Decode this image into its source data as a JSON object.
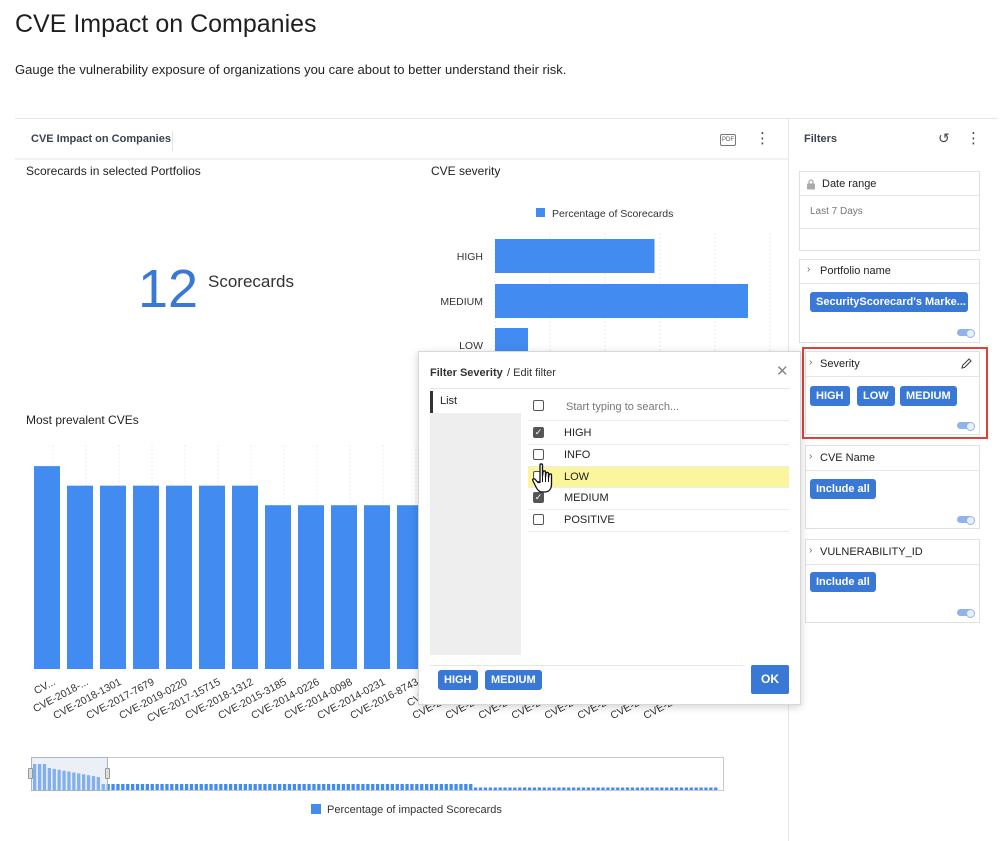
{
  "page": {
    "title": "CVE Impact on Companies",
    "subtitle": "Gauge the vulnerability exposure of organizations you care about to better understand their risk."
  },
  "dashboard": {
    "tab_label": "CVE Impact on Companies",
    "pdf_label": "PDF",
    "more_icon": "more-vertical-icon"
  },
  "kpi": {
    "title": "Scorecards in selected Portfolios",
    "value": "12",
    "label": "Scorecards"
  },
  "severity_chart_title": "CVE severity",
  "bar_chart_title": "Most prevalent CVEs",
  "bottom_legend": "Percentage of impacted Scorecards",
  "chart_data": [
    {
      "type": "bar",
      "orientation": "horizontal",
      "title": "CVE severity",
      "categories": [
        "HIGH",
        "MEDIUM",
        "LOW"
      ],
      "series": [
        {
          "name": "Percentage of Scorecards",
          "values": [
            58,
            92,
            12
          ],
          "color": "#418bf1"
        }
      ],
      "legend": "top",
      "grid": true
    },
    {
      "type": "bar",
      "title": "Most prevalent CVEs",
      "categories": [
        "CV...",
        "CVE-2018-...",
        "CVE-2018-1301",
        "CVE-2017-7679",
        "CVE-2019-0220",
        "CVE-2017-15715",
        "CVE-2018-1312",
        "CVE-2015-3185",
        "CVE-2014-0226",
        "CVE-2014-0098",
        "CVE-2014-0231",
        "CVE-2016-8743",
        "CVE-2016"
      ],
      "series": [
        {
          "name": "Percentage of impacted Scorecards",
          "values": [
            8.3,
            7.5,
            7.5,
            7.5,
            7.5,
            7.5,
            7.5,
            6.7,
            6.7,
            6.7,
            6.7,
            6.7,
            6.7
          ],
          "color": "#418bf1"
        }
      ],
      "legend": "bottom",
      "grid": true
    }
  ],
  "overflow_tick_labels": [
    "CVE-20...",
    "CVE-20...",
    "CVE-20...",
    "CVE-20...",
    "CVE-20...",
    "CVE-20...",
    "CVE-20...",
    "CVE-20..."
  ],
  "filters": {
    "title": "Filters",
    "reset_icon": "reset-icon",
    "more_icon": "more-vertical-icon",
    "date_range": {
      "label": "Date range",
      "value": "Last 7 Days",
      "icon": "lock-icon"
    },
    "portfolio": {
      "label": "Portfolio name",
      "chip": "SecurityScorecard's Marke..."
    },
    "severity": {
      "label": "Severity",
      "chips": [
        "HIGH",
        "LOW",
        "MEDIUM"
      ],
      "highlight_color": "#e0413a"
    },
    "cve_name": {
      "label": "CVE Name",
      "chip": "Include all"
    },
    "vuln_id": {
      "label": "VULNERABILITY_ID",
      "chip": "Include all"
    }
  },
  "modal": {
    "title": "Filter Severity",
    "subtitle": "/ Edit filter",
    "list_tab": "List",
    "search_placeholder": "Start typing to search...",
    "options": [
      {
        "label": "HIGH",
        "checked": true
      },
      {
        "label": "INFO",
        "checked": false
      },
      {
        "label": "LOW",
        "checked": false,
        "highlighted": true
      },
      {
        "label": "MEDIUM",
        "checked": true
      },
      {
        "label": "POSITIVE",
        "checked": false
      }
    ],
    "selected_chips": [
      "HIGH",
      "MEDIUM"
    ],
    "ok_label": "OK"
  }
}
